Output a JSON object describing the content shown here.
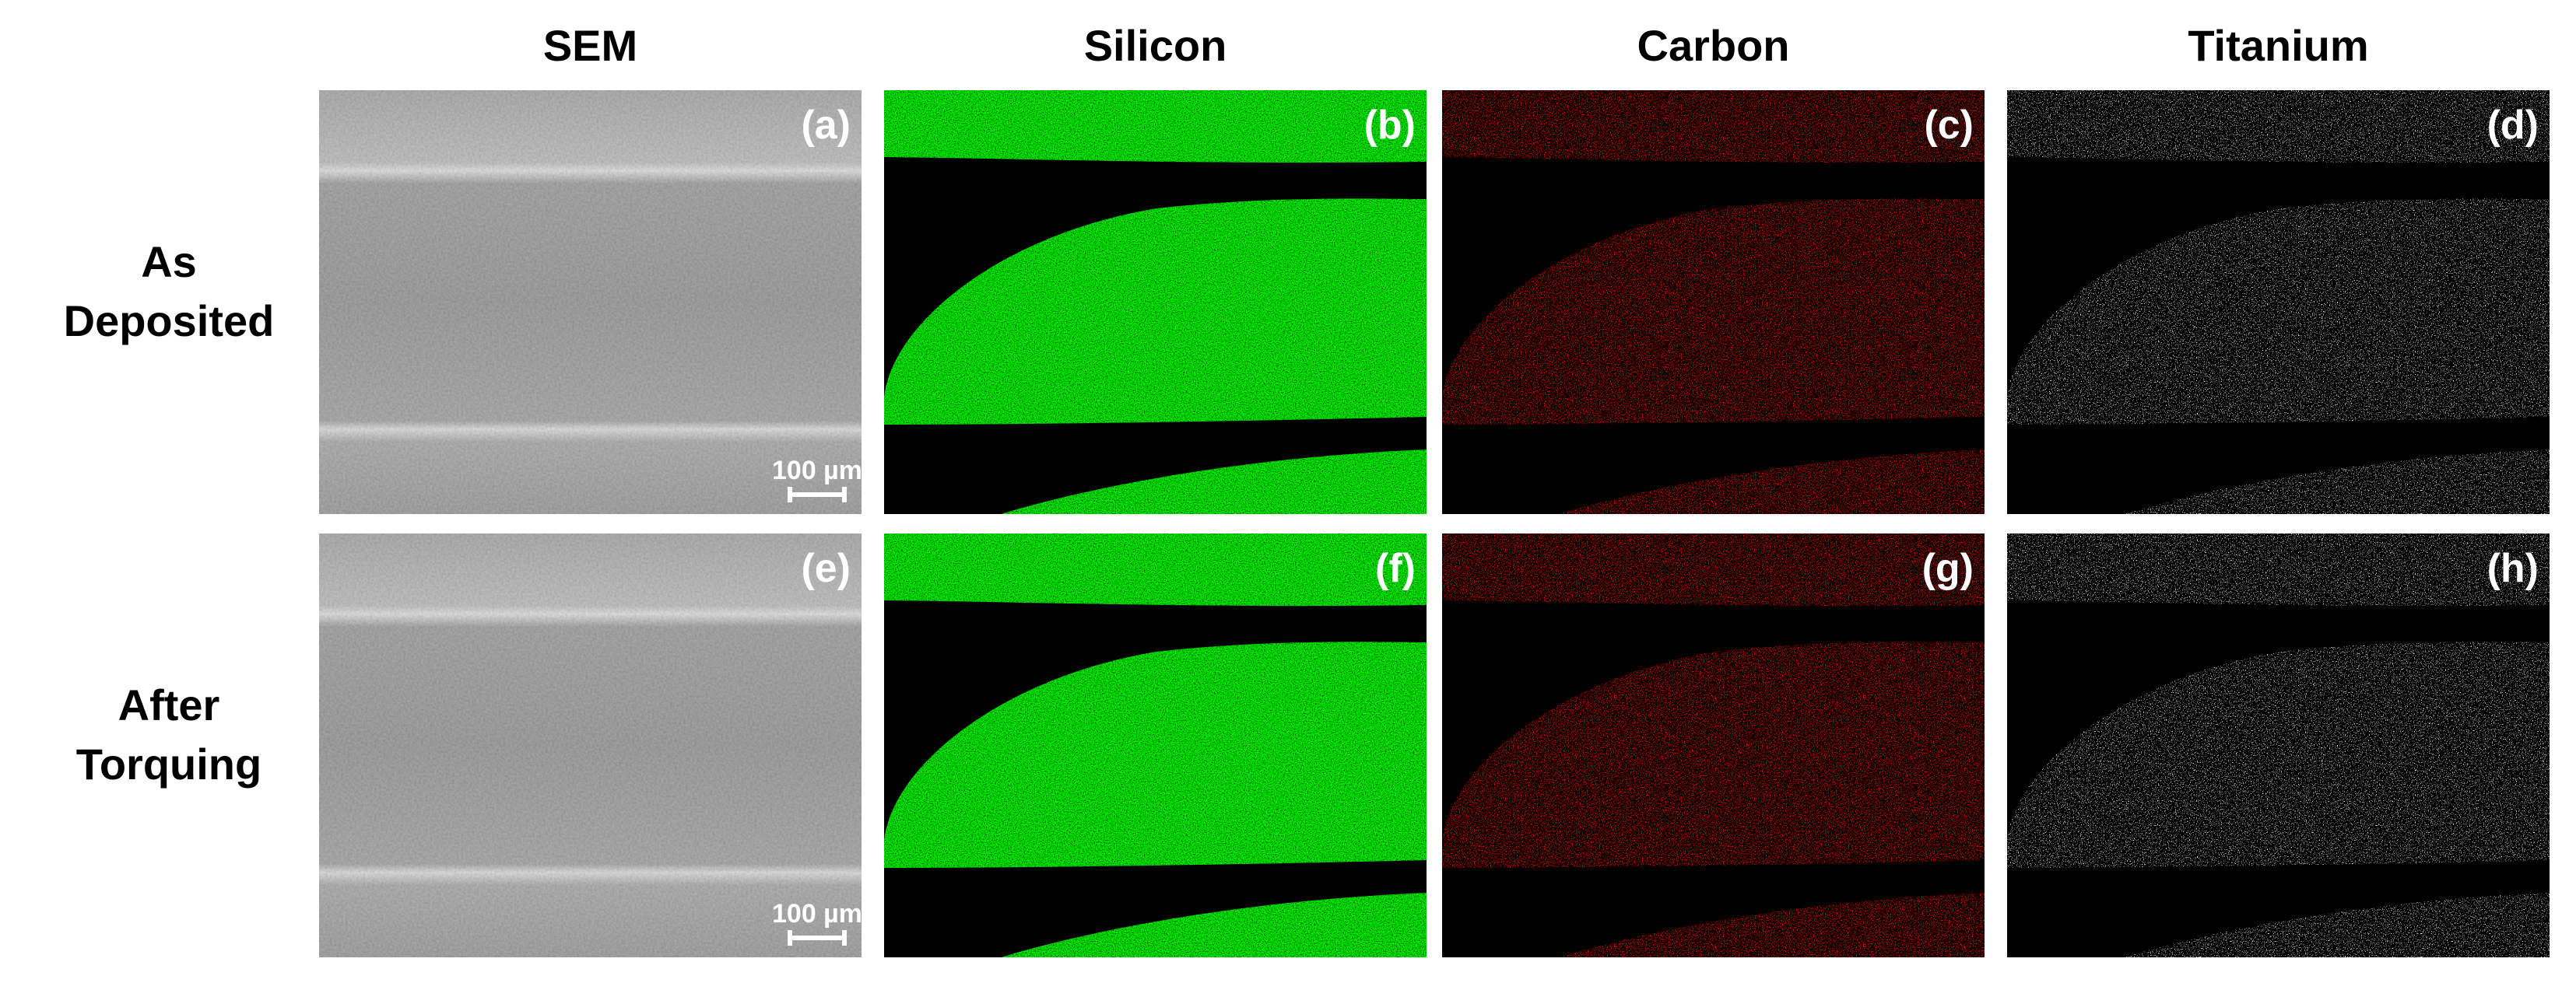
{
  "column_headers": [
    "SEM",
    "Silicon",
    "Carbon",
    "Titanium"
  ],
  "row_labels": [
    [
      "As",
      "Deposited"
    ],
    [
      "After",
      "Torquing"
    ]
  ],
  "panels": [
    [
      {
        "label": "(a)",
        "scale_bar": "100 µm"
      },
      {
        "label": "(b)"
      },
      {
        "label": "(c)"
      },
      {
        "label": "(d)"
      }
    ],
    [
      {
        "label": "(e)",
        "scale_bar": "100 µm"
      },
      {
        "label": "(f)"
      },
      {
        "label": "(g)"
      },
      {
        "label": "(h)"
      }
    ]
  ]
}
